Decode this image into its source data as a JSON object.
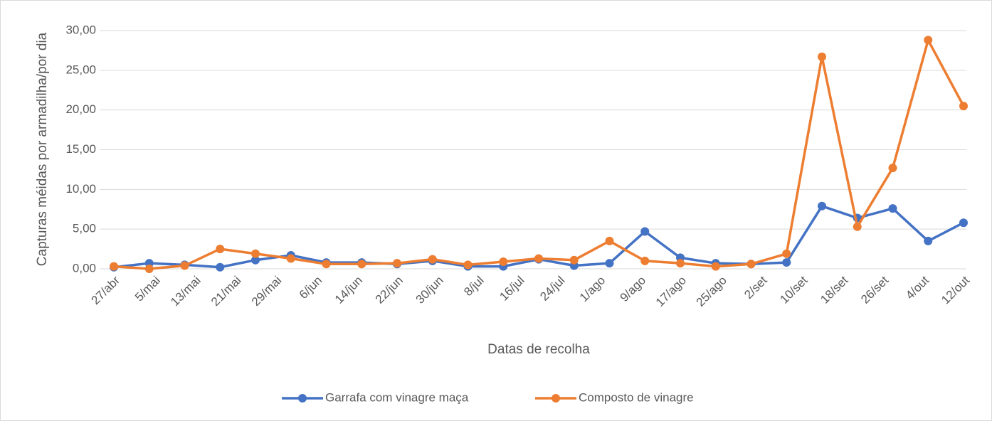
{
  "chart_data": {
    "type": "line",
    "y_label": "Capturas méidas por armadilha/por dia",
    "x_label": "Datas de recolha",
    "xlim": [
      0,
      168
    ],
    "xticks": [
      {
        "value": 0,
        "label": "27/abr"
      },
      {
        "value": 8,
        "label": "5/mai"
      },
      {
        "value": 16,
        "label": "13/mai"
      },
      {
        "value": 24,
        "label": "21/mai"
      },
      {
        "value": 32,
        "label": "29/mai"
      },
      {
        "value": 40,
        "label": "6/jun"
      },
      {
        "value": 48,
        "label": "14/jun"
      },
      {
        "value": 56,
        "label": "22/jun"
      },
      {
        "value": 64,
        "label": "30/jun"
      },
      {
        "value": 72,
        "label": "8/jul"
      },
      {
        "value": 80,
        "label": "16/jul"
      },
      {
        "value": 88,
        "label": "24/jul"
      },
      {
        "value": 96,
        "label": "1/ago"
      },
      {
        "value": 104,
        "label": "9/ago"
      },
      {
        "value": 112,
        "label": "17/ago"
      },
      {
        "value": 120,
        "label": "25/ago"
      },
      {
        "value": 128,
        "label": "2/set"
      },
      {
        "value": 136,
        "label": "10/set"
      },
      {
        "value": 144,
        "label": "18/set"
      },
      {
        "value": 152,
        "label": "26/set"
      },
      {
        "value": 160,
        "label": "4/out"
      },
      {
        "value": 168,
        "label": "12/out"
      }
    ],
    "x": [
      0,
      7,
      14,
      21,
      28,
      35,
      42,
      49,
      56,
      63,
      70,
      77,
      84,
      91,
      98,
      105,
      112,
      119,
      126,
      133,
      140,
      147,
      154,
      161,
      168
    ],
    "ylim": [
      0,
      30
    ],
    "yticks": [
      {
        "value": 0,
        "label": "0,00"
      },
      {
        "value": 5,
        "label": "5,00"
      },
      {
        "value": 10,
        "label": "10,00"
      },
      {
        "value": 15,
        "label": "15,00"
      },
      {
        "value": 20,
        "label": "20,00"
      },
      {
        "value": 25,
        "label": "25,00"
      },
      {
        "value": 30,
        "label": "30,00"
      }
    ],
    "grid": true,
    "legend": "bottom",
    "series": [
      {
        "name": "Garrafa com vinagre maça",
        "color": "#4472c4",
        "values": [
          0.2,
          0.7,
          0.5,
          0.2,
          1.1,
          1.7,
          0.8,
          0.8,
          0.6,
          1.0,
          0.3,
          0.3,
          1.2,
          0.4,
          0.7,
          4.7,
          1.4,
          0.7,
          0.6,
          0.8,
          7.9,
          6.4,
          7.6,
          3.5,
          5.8
        ]
      },
      {
        "name": "Composto de vinagre",
        "color": "#ed7d31",
        "values": [
          0.3,
          0.0,
          0.4,
          2.5,
          1.9,
          1.3,
          0.6,
          0.6,
          0.7,
          1.2,
          0.5,
          0.9,
          1.3,
          1.1,
          3.5,
          1.0,
          0.7,
          0.3,
          0.6,
          1.9,
          26.7,
          5.3,
          12.7,
          28.8,
          20.5
        ]
      }
    ]
  }
}
